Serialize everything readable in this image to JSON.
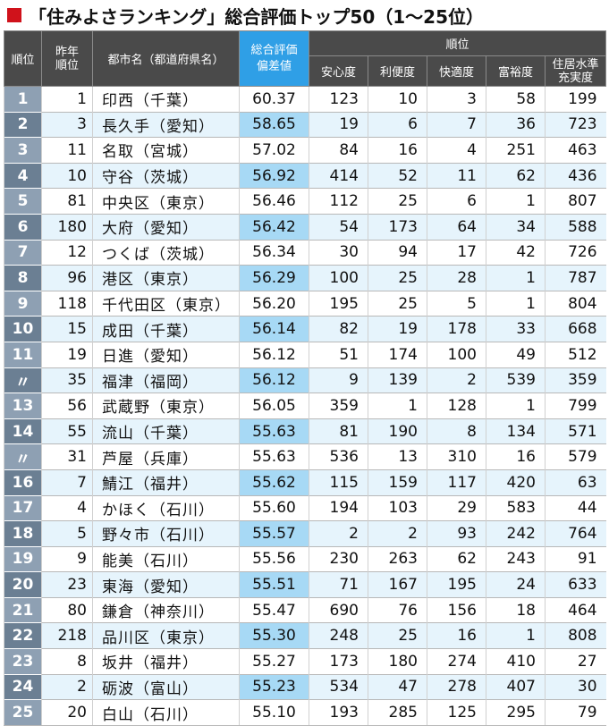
{
  "title": "「住みよさランキング」総合評価トップ50（1〜25位）",
  "headers": {
    "rank": "順位",
    "prev": "昨年順位",
    "city": "都市名（都道府県名）",
    "score": "総合評価偏差値",
    "group": "順位",
    "metrics": [
      "安心度",
      "利便度",
      "快適度",
      "富裕度",
      "住居水準充実度"
    ]
  },
  "rows": [
    {
      "rank": "1",
      "prev": "1",
      "city": "印西（千葉）",
      "score": "60.37",
      "m": [
        "123",
        "10",
        "3",
        "58",
        "199"
      ]
    },
    {
      "rank": "2",
      "prev": "3",
      "city": "長久手（愛知）",
      "score": "58.65",
      "m": [
        "19",
        "6",
        "7",
        "36",
        "723"
      ]
    },
    {
      "rank": "3",
      "prev": "11",
      "city": "名取（宮城）",
      "score": "57.02",
      "m": [
        "84",
        "16",
        "4",
        "251",
        "463"
      ]
    },
    {
      "rank": "4",
      "prev": "10",
      "city": "守谷（茨城）",
      "score": "56.92",
      "m": [
        "414",
        "52",
        "11",
        "62",
        "436"
      ]
    },
    {
      "rank": "5",
      "prev": "81",
      "city": "中央区（東京）",
      "score": "56.46",
      "m": [
        "112",
        "25",
        "6",
        "1",
        "807"
      ]
    },
    {
      "rank": "6",
      "prev": "180",
      "city": "大府（愛知）",
      "score": "56.42",
      "m": [
        "54",
        "173",
        "64",
        "34",
        "588"
      ]
    },
    {
      "rank": "7",
      "prev": "12",
      "city": "つくば（茨城）",
      "score": "56.34",
      "m": [
        "30",
        "94",
        "17",
        "42",
        "726"
      ]
    },
    {
      "rank": "8",
      "prev": "96",
      "city": "港区（東京）",
      "score": "56.29",
      "m": [
        "100",
        "25",
        "28",
        "1",
        "787"
      ]
    },
    {
      "rank": "9",
      "prev": "118",
      "city": "千代田区（東京）",
      "score": "56.20",
      "m": [
        "195",
        "25",
        "5",
        "1",
        "804"
      ]
    },
    {
      "rank": "10",
      "prev": "15",
      "city": "成田（千葉）",
      "score": "56.14",
      "m": [
        "82",
        "19",
        "178",
        "33",
        "668"
      ]
    },
    {
      "rank": "11",
      "prev": "19",
      "city": "日進（愛知）",
      "score": "56.12",
      "m": [
        "51",
        "174",
        "100",
        "49",
        "512"
      ]
    },
    {
      "rank": "〃",
      "prev": "35",
      "city": "福津（福岡）",
      "score": "56.12",
      "m": [
        "9",
        "139",
        "2",
        "539",
        "359"
      ]
    },
    {
      "rank": "13",
      "prev": "56",
      "city": "武蔵野（東京）",
      "score": "56.05",
      "m": [
        "359",
        "1",
        "128",
        "1",
        "799"
      ]
    },
    {
      "rank": "14",
      "prev": "55",
      "city": "流山（千葉）",
      "score": "55.63",
      "m": [
        "81",
        "190",
        "8",
        "134",
        "571"
      ]
    },
    {
      "rank": "〃",
      "prev": "31",
      "city": "芦屋（兵庫）",
      "score": "55.63",
      "m": [
        "536",
        "13",
        "310",
        "16",
        "579"
      ]
    },
    {
      "rank": "16",
      "prev": "7",
      "city": "鯖江（福井）",
      "score": "55.62",
      "m": [
        "115",
        "159",
        "117",
        "420",
        "63"
      ]
    },
    {
      "rank": "17",
      "prev": "4",
      "city": "かほく（石川）",
      "score": "55.60",
      "m": [
        "194",
        "103",
        "29",
        "583",
        "44"
      ]
    },
    {
      "rank": "18",
      "prev": "5",
      "city": "野々市（石川）",
      "score": "55.57",
      "m": [
        "2",
        "2",
        "93",
        "242",
        "764"
      ]
    },
    {
      "rank": "19",
      "prev": "9",
      "city": "能美（石川）",
      "score": "55.56",
      "m": [
        "230",
        "263",
        "62",
        "243",
        "91"
      ]
    },
    {
      "rank": "20",
      "prev": "23",
      "city": "東海（愛知）",
      "score": "55.51",
      "m": [
        "71",
        "167",
        "195",
        "24",
        "633"
      ]
    },
    {
      "rank": "21",
      "prev": "80",
      "city": "鎌倉（神奈川）",
      "score": "55.47",
      "m": [
        "690",
        "76",
        "156",
        "18",
        "464"
      ]
    },
    {
      "rank": "22",
      "prev": "218",
      "city": "品川区（東京）",
      "score": "55.30",
      "m": [
        "248",
        "25",
        "16",
        "1",
        "808"
      ]
    },
    {
      "rank": "23",
      "prev": "8",
      "city": "坂井（福井）",
      "score": "55.27",
      "m": [
        "173",
        "180",
        "274",
        "410",
        "27"
      ]
    },
    {
      "rank": "24",
      "prev": "2",
      "city": "砺波（富山）",
      "score": "55.23",
      "m": [
        "534",
        "47",
        "278",
        "407",
        "30"
      ]
    },
    {
      "rank": "25",
      "prev": "20",
      "city": "白山（石川）",
      "score": "55.10",
      "m": [
        "193",
        "285",
        "125",
        "295",
        "79"
      ]
    }
  ]
}
